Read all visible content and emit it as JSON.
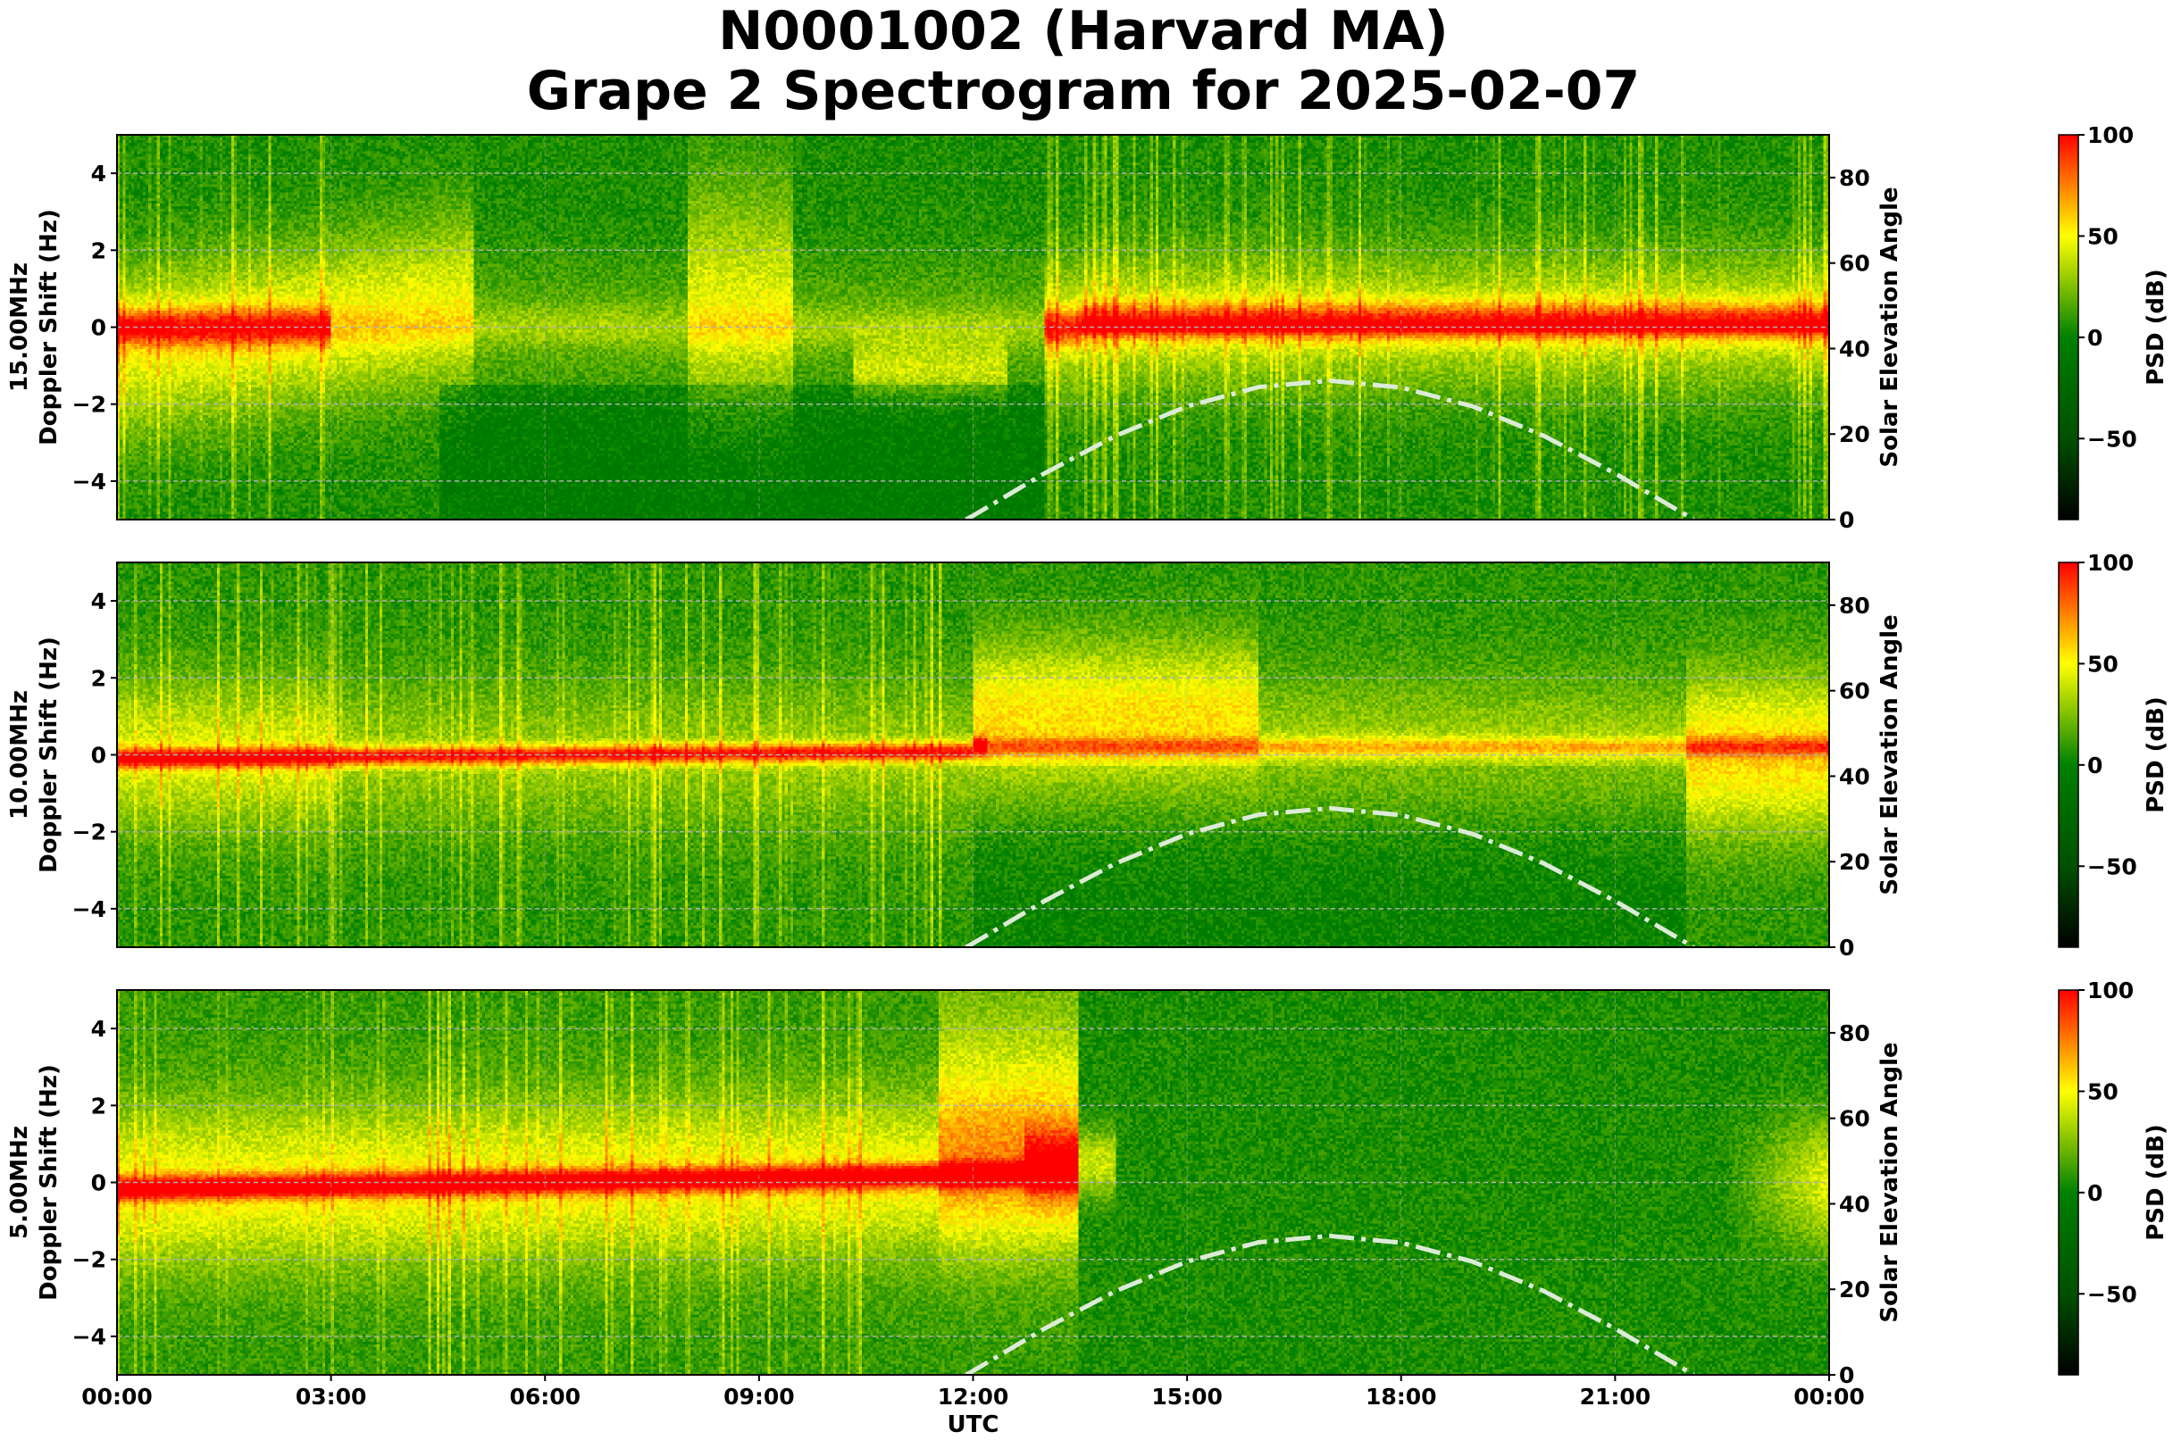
{
  "chart_data": {
    "title_line1": "N0001002 (Harvard MA)",
    "title_line2": "Grape 2 Spectrogram for 2025-02-07",
    "type": "heatmap",
    "xlabel": "UTC",
    "x_ticks": [
      "00:00",
      "03:00",
      "06:00",
      "09:00",
      "12:00",
      "15:00",
      "18:00",
      "21:00",
      "00:00"
    ],
    "x_range_hours": [
      0,
      24
    ],
    "grid": true,
    "colormap": {
      "stops": [
        [
          "-90",
          "#000000"
        ],
        [
          "-50",
          "#005000"
        ],
        [
          "0",
          "#008000"
        ],
        [
          "50",
          "#ffff00"
        ],
        [
          "100",
          "#ff0000"
        ]
      ]
    },
    "panels": [
      {
        "frequency_label": "15.00MHz",
        "ylabel": "Doppler Shift (Hz)",
        "ylim": [
          -5,
          5
        ],
        "y_ticks": [
          "4",
          "2",
          "0",
          "−2",
          "−4"
        ],
        "y_tick_values": [
          4,
          2,
          0,
          -2,
          -4
        ],
        "right_ylabel": "Solar Elevation Angle",
        "right_ylim": [
          0,
          90
        ],
        "right_ticks": [
          "80",
          "60",
          "40",
          "20",
          "0"
        ],
        "right_tick_values": [
          80,
          60,
          40,
          20,
          0
        ],
        "colorbar_label": "PSD (dB)",
        "colorbar_range": [
          -90,
          100
        ],
        "colorbar_ticks": [
          "100",
          "50",
          "0",
          "−50"
        ],
        "colorbar_tick_values": [
          100,
          50,
          0,
          -50
        ]
      },
      {
        "frequency_label": "10.00MHz",
        "ylabel": "Doppler Shift (Hz)",
        "ylim": [
          -5,
          5
        ],
        "y_ticks": [
          "4",
          "2",
          "0",
          "−2",
          "−4"
        ],
        "y_tick_values": [
          4,
          2,
          0,
          -2,
          -4
        ],
        "right_ylabel": "Solar Elevation Angle",
        "right_ylim": [
          0,
          90
        ],
        "right_ticks": [
          "80",
          "60",
          "40",
          "20",
          "0"
        ],
        "right_tick_values": [
          80,
          60,
          40,
          20,
          0
        ],
        "colorbar_label": "PSD (dB)",
        "colorbar_range": [
          -90,
          100
        ],
        "colorbar_ticks": [
          "100",
          "50",
          "0",
          "−50"
        ],
        "colorbar_tick_values": [
          100,
          50,
          0,
          -50
        ]
      },
      {
        "frequency_label": "5.00MHz",
        "ylabel": "Doppler Shift (Hz)",
        "ylim": [
          -5,
          5
        ],
        "y_ticks": [
          "4",
          "2",
          "0",
          "−2",
          "−4"
        ],
        "y_tick_values": [
          4,
          2,
          0,
          -2,
          -4
        ],
        "right_ylabel": "Solar Elevation Angle",
        "right_ylim": [
          0,
          90
        ],
        "right_ticks": [
          "80",
          "60",
          "40",
          "20",
          "0"
        ],
        "right_tick_values": [
          80,
          60,
          40,
          20,
          0
        ],
        "colorbar_label": "PSD (dB)",
        "colorbar_range": [
          -90,
          100
        ],
        "colorbar_ticks": [
          "100",
          "50",
          "0",
          "−50"
        ],
        "colorbar_tick_values": [
          100,
          50,
          0,
          -50
        ]
      }
    ],
    "solar_elevation": {
      "style": "dash-dot",
      "color": "#dcebd8",
      "hours": [
        11.9,
        12,
        13,
        14,
        15,
        16,
        17,
        18,
        19,
        20,
        21,
        22,
        22.1
      ],
      "degrees": [
        0,
        0.9,
        10.8,
        19.6,
        26.5,
        31.0,
        32.5,
        30.9,
        26.5,
        19.6,
        10.8,
        1.0,
        0
      ]
    }
  }
}
